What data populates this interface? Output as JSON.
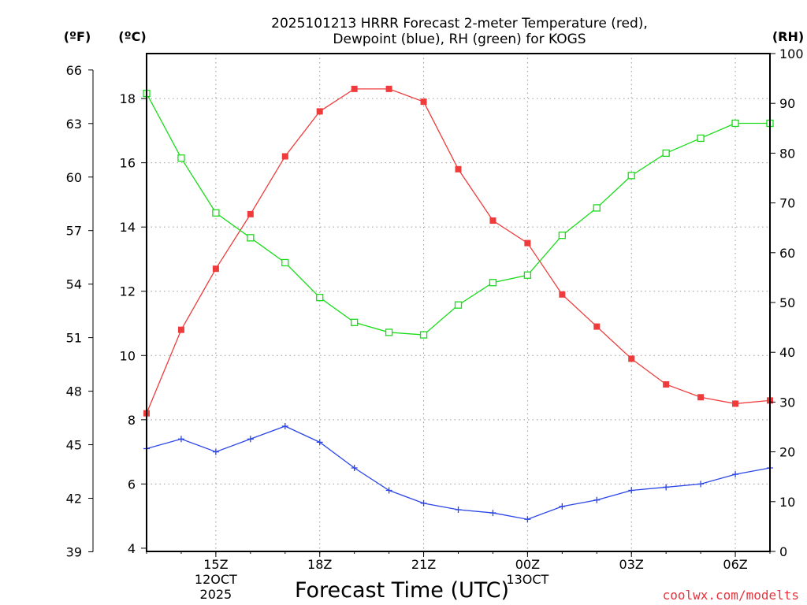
{
  "chart_data": {
    "type": "line",
    "title": [
      "2025101213 HRRR Forecast 2-meter Temperature (red),",
      "Dewpoint (blue), RH (green) for KOGS"
    ],
    "xlabel": "Forecast Time (UTC)",
    "credit": "coolwx.com/modelts",
    "units": {
      "fahrenheit": "(ºF)",
      "celsius": "(ºC)",
      "rh": "(RH)"
    },
    "x_hours": [
      13,
      14,
      15,
      16,
      17,
      18,
      19,
      20,
      21,
      22,
      23,
      24,
      25,
      26,
      27,
      28,
      29,
      30,
      31
    ],
    "xlim": [
      13,
      31
    ],
    "x_ticks": [
      {
        "hour": 15,
        "lines": [
          "15Z",
          "12OCT",
          "2025"
        ]
      },
      {
        "hour": 18,
        "lines": [
          "18Z"
        ]
      },
      {
        "hour": 21,
        "lines": [
          "21Z"
        ]
      },
      {
        "hour": 24,
        "lines": [
          "00Z",
          "13OCT"
        ]
      },
      {
        "hour": 27,
        "lines": [
          "03Z"
        ]
      },
      {
        "hour": 30,
        "lines": [
          "06Z"
        ]
      }
    ],
    "celsius_axis": {
      "range": [
        3.9,
        19.4
      ],
      "ticks": [
        "4",
        "6",
        "8",
        "10",
        "12",
        "14",
        "16",
        "18"
      ]
    },
    "fahrenheit_axis": {
      "ticks": [
        "39",
        "42",
        "45",
        "48",
        "51",
        "54",
        "57",
        "60",
        "63",
        "66"
      ]
    },
    "rh_axis": {
      "range": [
        0,
        100
      ],
      "ticks": [
        "0",
        "10",
        "20",
        "30",
        "40",
        "50",
        "60",
        "70",
        "80",
        "90",
        "100"
      ]
    },
    "series": [
      {
        "name": "Temperature (red)",
        "unit": "C",
        "color": "#ee3c3c",
        "marker": "filled-square",
        "values": [
          8.2,
          10.8,
          12.7,
          14.4,
          16.2,
          17.6,
          18.3,
          18.3,
          17.9,
          15.8,
          14.2,
          13.5,
          11.9,
          10.9,
          9.9,
          9.1,
          8.7,
          8.5,
          8.6
        ]
      },
      {
        "name": "Dewpoint (blue)",
        "unit": "C",
        "color": "#2b45e8",
        "marker": "plus",
        "values": [
          7.1,
          7.4,
          7.0,
          7.4,
          7.8,
          7.3,
          6.5,
          5.8,
          5.4,
          5.2,
          5.1,
          4.9,
          5.3,
          5.5,
          5.8,
          5.9,
          6.0,
          6.3,
          6.5
        ]
      },
      {
        "name": "RH (green)",
        "unit": "%",
        "color": "#19dc19",
        "marker": "open-square",
        "values": [
          92,
          79,
          68,
          63,
          58,
          51,
          46,
          44,
          43.5,
          49.5,
          54,
          55.5,
          63.5,
          69,
          75.5,
          80,
          83,
          86,
          86
        ]
      }
    ]
  }
}
